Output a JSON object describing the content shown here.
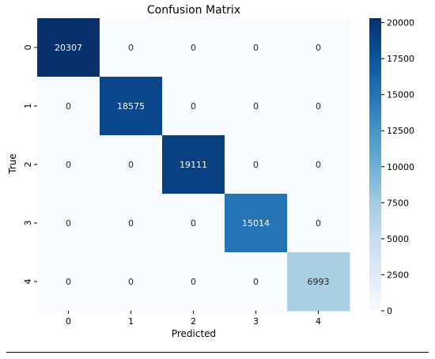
{
  "chart_data": {
    "type": "heatmap",
    "title": "Confusion Matrix",
    "xlabel": "Predicted",
    "ylabel": "True",
    "x_categories": [
      "0",
      "1",
      "2",
      "3",
      "4"
    ],
    "y_categories": [
      "0",
      "1",
      "2",
      "3",
      "4"
    ],
    "values": [
      [
        20307,
        0,
        0,
        0,
        0
      ],
      [
        0,
        18575,
        0,
        0,
        0
      ],
      [
        0,
        0,
        19111,
        0,
        0
      ],
      [
        0,
        0,
        0,
        15014,
        0
      ],
      [
        0,
        0,
        0,
        0,
        6993
      ]
    ],
    "colormap": "Blues",
    "vmin": 0,
    "vmax": 20307,
    "colorbar_ticks": [
      0,
      2500,
      5000,
      7500,
      10000,
      12500,
      15000,
      17500,
      20000
    ],
    "grid": false
  }
}
